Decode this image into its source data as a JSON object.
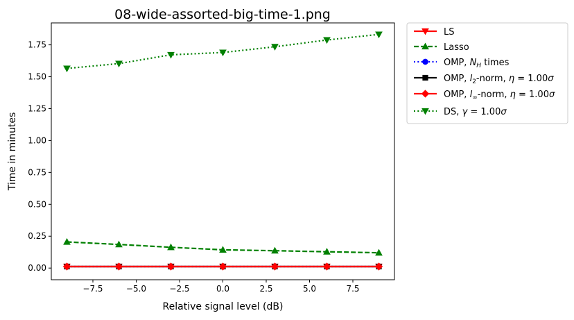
{
  "chart_data": {
    "type": "line",
    "title": "08-wide-assorted-big-time-1.png",
    "xlabel": "Relative signal level (dB)",
    "ylabel": "Time in minutes",
    "xlim": [
      -9.9,
      9.9
    ],
    "ylim": [
      -0.0915,
      1.922
    ],
    "xticks": [
      -7.5,
      -5.0,
      -2.5,
      0.0,
      2.5,
      5.0,
      7.5
    ],
    "xtick_labels": [
      "−7.5",
      "−5.0",
      "−2.5",
      "0.0",
      "2.5",
      "5.0",
      "7.5"
    ],
    "yticks": [
      0.0,
      0.25,
      0.5,
      0.75,
      1.0,
      1.25,
      1.5,
      1.75
    ],
    "ytick_labels": [
      "0.00",
      "0.25",
      "0.50",
      "0.75",
      "1.00",
      "1.25",
      "1.50",
      "1.75"
    ],
    "x": [
      -9,
      -6,
      -3,
      0,
      3,
      6,
      9
    ],
    "legend_position": "outside-right-top",
    "series": [
      {
        "name": "LS",
        "color": "#ff0000",
        "linestyle": "solid",
        "marker": "triangle-down",
        "values": [
          0.012,
          0.012,
          0.012,
          0.012,
          0.012,
          0.012,
          0.012
        ]
      },
      {
        "name": "Lasso",
        "color": "#008000",
        "linestyle": "dashed",
        "marker": "triangle-up",
        "values": [
          0.205,
          0.185,
          0.163,
          0.143,
          0.136,
          0.128,
          0.12
        ]
      },
      {
        "name": "OMP, N_H times",
        "color": "#0000ff",
        "linestyle": "dotted",
        "marker": "circle",
        "values": [
          0.012,
          0.012,
          0.012,
          0.012,
          0.012,
          0.012,
          0.012
        ]
      },
      {
        "name": "OMP, l_2-norm, η = 1.00σ",
        "color": "#000000",
        "linestyle": "solid",
        "marker": "square",
        "values": [
          0.012,
          0.012,
          0.012,
          0.012,
          0.012,
          0.012,
          0.012
        ]
      },
      {
        "name": "OMP, l_∞-norm, η = 1.00σ",
        "color": "#ff0000",
        "linestyle": "solid",
        "marker": "diamond",
        "values": [
          0.012,
          0.012,
          0.012,
          0.012,
          0.012,
          0.012,
          0.012
        ]
      },
      {
        "name": "DS, γ = 1.00σ",
        "color": "#008000",
        "linestyle": "dotted",
        "marker": "triangle-down",
        "values": [
          1.565,
          1.603,
          1.672,
          1.69,
          1.735,
          1.788,
          1.832
        ]
      }
    ],
    "legend": {
      "ls": "LS",
      "lasso": "Lasso",
      "omp_nh_prefix": "OMP, ",
      "omp_nh_var": "N",
      "omp_nh_sub": "H",
      "omp_nh_suffix": " times",
      "omp_l2_prefix": "OMP, ",
      "omp_l2_var": "l",
      "omp_l2_sub": "2",
      "omp_l2_mid": "-norm, ",
      "omp_l2_eta": "η",
      "omp_l2_eq": " = 1.00",
      "omp_l2_sigma": "σ",
      "omp_linf_prefix": "OMP, ",
      "omp_linf_var": "l",
      "omp_linf_sub": "∞",
      "omp_linf_mid": "-norm, ",
      "omp_linf_eta": "η",
      "omp_linf_eq": " = 1.00",
      "omp_linf_sigma": "σ",
      "ds_prefix": "DS, ",
      "ds_gamma": "γ",
      "ds_eq": " = 1.00",
      "ds_sigma": "σ"
    }
  }
}
